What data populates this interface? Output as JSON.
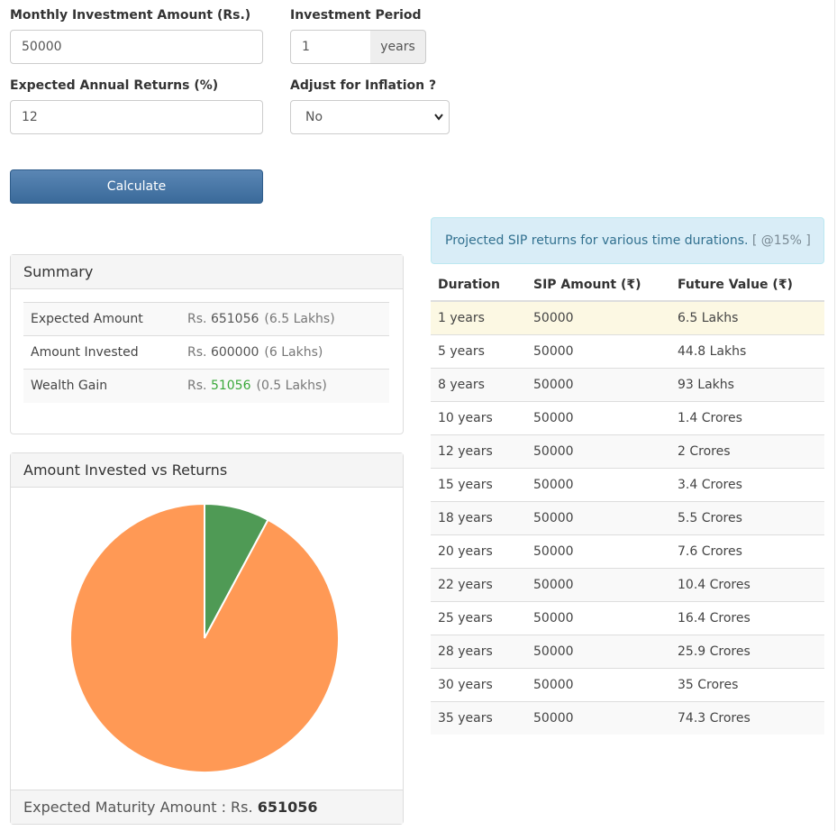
{
  "form": {
    "monthly_label": "Monthly Investment Amount (Rs.)",
    "monthly_value": "50000",
    "period_label": "Investment Period",
    "period_value": "1",
    "period_unit": "years",
    "returns_label": "Expected Annual Returns (%)",
    "returns_value": "12",
    "inflation_label": "Adjust for Inflation ?",
    "inflation_value": "No",
    "calculate_label": "Calculate"
  },
  "summary": {
    "title": "Summary",
    "rows": [
      {
        "label": "Expected Amount",
        "prefix": "Rs.",
        "amount": "651056",
        "lakhs": "(6.5 Lakhs)"
      },
      {
        "label": "Amount Invested",
        "prefix": "Rs.",
        "amount": "600000",
        "lakhs": "(6 Lakhs)"
      },
      {
        "label": "Wealth Gain",
        "prefix": "Rs.",
        "amount": "51056",
        "lakhs": "(0.5 Lakhs)"
      }
    ]
  },
  "chart_panel": {
    "title": "Amount Invested vs Returns",
    "footer_label": "Expected Maturity Amount : Rs.",
    "footer_value": "651056"
  },
  "chart_data": {
    "type": "pie",
    "slices": [
      {
        "label": "Amount Invested",
        "value": 600000,
        "color": "#ff9955"
      },
      {
        "label": "Wealth Gain",
        "value": 51056,
        "color": "#4f9a55"
      }
    ]
  },
  "projection": {
    "alert_text": "Projected SIP returns for various time durations.",
    "alert_rate": "[ @15% ]",
    "headers": [
      "Duration",
      "SIP Amount (₹)",
      "Future Value (₹)"
    ],
    "rows": [
      [
        "1 years",
        "50000",
        "6.5 Lakhs"
      ],
      [
        "5 years",
        "50000",
        "44.8 Lakhs"
      ],
      [
        "8 years",
        "50000",
        "93 Lakhs"
      ],
      [
        "10 years",
        "50000",
        "1.4 Crores"
      ],
      [
        "12 years",
        "50000",
        "2 Crores"
      ],
      [
        "15 years",
        "50000",
        "3.4 Crores"
      ],
      [
        "18 years",
        "50000",
        "5.5 Crores"
      ],
      [
        "20 years",
        "50000",
        "7.6 Crores"
      ],
      [
        "22 years",
        "50000",
        "10.4 Crores"
      ],
      [
        "25 years",
        "50000",
        "16.4 Crores"
      ],
      [
        "28 years",
        "50000",
        "25.9 Crores"
      ],
      [
        "30 years",
        "50000",
        "35 Crores"
      ],
      [
        "35 years",
        "50000",
        "74.3 Crores"
      ]
    ]
  },
  "colors": {
    "button": "#3a6a9a",
    "highlight_row": "#fcf8e3",
    "alert_bg": "#d9edf7",
    "gain_text": "#3aa83a"
  }
}
